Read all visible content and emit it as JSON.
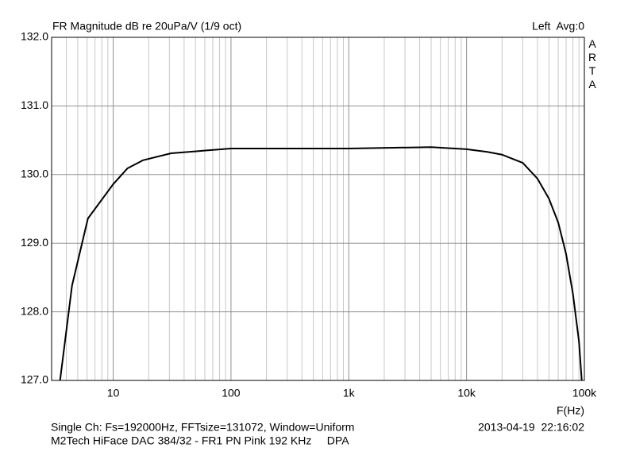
{
  "chart_data": {
    "type": "line",
    "title": "FR Magnitude dB re 20uPa/V (1/9 oct)",
    "channel_label": "Left  Avg:0",
    "brand": "ARTA",
    "x_label": "F(Hz)",
    "footer_lines": [
      "Single Ch: Fs=192000Hz, FFTsize=131072, Window=Uniform",
      "M2Tech HiFace DAC 384/32 - FR1 PN Pink 192 KHz     DPA"
    ],
    "timestamp": "2013-04-19  22:16:02",
    "x_log": true,
    "grid": true,
    "color": "#000000",
    "xlim": [
      3,
      100000
    ],
    "xticks": [
      10,
      100,
      {
        "value": 1000,
        "label": "1k"
      },
      {
        "value": 10000,
        "label": "10k"
      },
      {
        "value": 100000,
        "label": "100k"
      }
    ],
    "ylim": [
      127,
      132
    ],
    "yticks": [
      {
        "value": 127,
        "label": "127.0"
      },
      {
        "value": 128,
        "label": "128.0"
      },
      {
        "value": 129,
        "label": "129.0"
      },
      {
        "value": 130,
        "label": "130.0"
      },
      {
        "value": 131,
        "label": "131.0"
      },
      {
        "value": 132,
        "label": "132.0"
      }
    ],
    "x": [
      3.54,
      4.47,
      6.1,
      10,
      13.2,
      18,
      31,
      100,
      1000,
      5000,
      10000,
      15000,
      20000,
      30000,
      40000,
      50000,
      60000,
      70000,
      80000,
      90000,
      95000
    ],
    "values": [
      127.0,
      128.38,
      129.36,
      129.86,
      130.09,
      130.21,
      130.31,
      130.38,
      130.38,
      130.4,
      130.37,
      130.33,
      130.29,
      130.17,
      129.94,
      129.65,
      129.3,
      128.84,
      128.26,
      127.57,
      127.0
    ]
  }
}
